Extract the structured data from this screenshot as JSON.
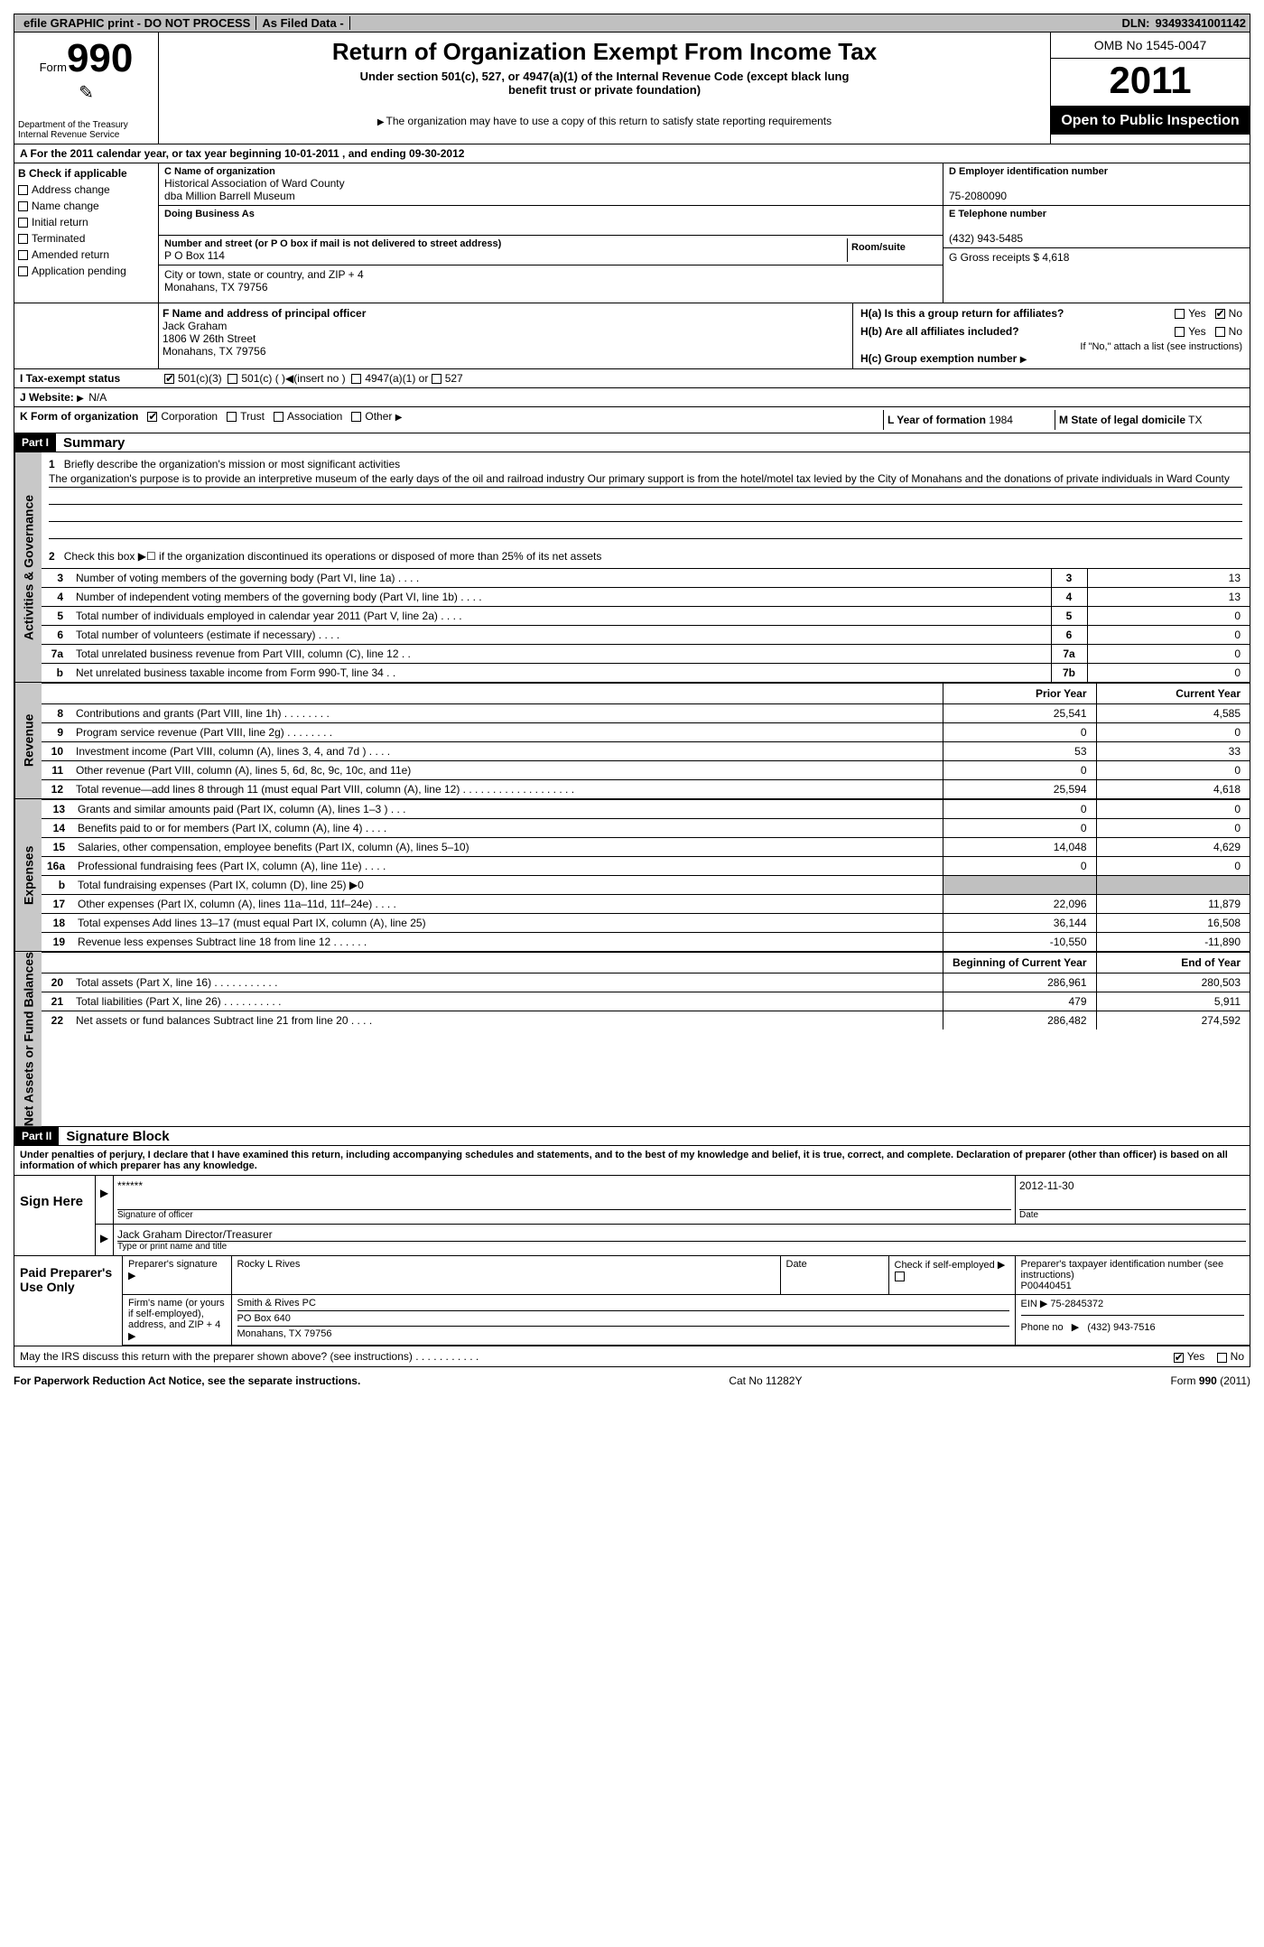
{
  "topbar": {
    "efile": "efile GRAPHIC print - DO NOT PROCESS",
    "asfiled": "As Filed Data -",
    "dln_label": "DLN:",
    "dln": "93493341001142"
  },
  "header": {
    "form_word": "Form",
    "form_no": "990",
    "dept": "Department of the Treasury",
    "irs": "Internal Revenue Service",
    "title": "Return of Organization Exempt From Income Tax",
    "sub": "Under section 501(c), 527, or 4947(a)(1) of the Internal Revenue Code (except black lung",
    "sub2": "benefit trust or private foundation)",
    "note": "The organization may have to use a copy of this return to satisfy state reporting requirements",
    "omb": "OMB No 1545-0047",
    "year": "2011",
    "open": "Open to Public Inspection"
  },
  "line_a": "A  For the 2011 calendar year, or tax year beginning 10-01-2011 , and ending 09-30-2012",
  "section_b": {
    "label": "B  Check if applicable",
    "items": [
      "Address change",
      "Name change",
      "Initial return",
      "Terminated",
      "Amended return",
      "Application pending"
    ]
  },
  "section_c": {
    "name_label": "C Name of organization",
    "name1": "Historical Association of Ward County",
    "name2": "dba Million Barrell Museum",
    "dba_label": "Doing Business As",
    "street_label": "Number and street (or P O  box if mail is not delivered to street address)",
    "room_label": "Room/suite",
    "street": "P O Box 114",
    "city_label": "City or town, state or country, and ZIP + 4",
    "city": "Monahans, TX  79756"
  },
  "section_d": {
    "label": "D Employer identification number",
    "value": "75-2080090"
  },
  "section_e": {
    "label": "E Telephone number",
    "value": "(432) 943-5485"
  },
  "section_g": {
    "label": "G Gross receipts $",
    "value": "4,618"
  },
  "section_f": {
    "label": "F  Name and address of principal officer",
    "name": "Jack Graham",
    "street": "1806 W 26th Street",
    "city": "Monahans, TX  79756"
  },
  "section_h": {
    "ha": "H(a)  Is this a group return for affiliates?",
    "hb": "H(b)  Are all affiliates included?",
    "hb_note": "If \"No,\" attach a list  (see instructions)",
    "hc": "H(c)   Group exemption number",
    "yes": "Yes",
    "no": "No"
  },
  "section_i": {
    "label": "I   Tax-exempt status",
    "opts": [
      "501(c)(3)",
      "501(c) (  )",
      "(insert no )",
      "4947(a)(1) or",
      "527"
    ]
  },
  "section_j": {
    "label": "J   Website:",
    "value": "N/A"
  },
  "section_k": {
    "label": "K Form of organization",
    "opts": [
      "Corporation",
      "Trust",
      "Association",
      "Other"
    ],
    "l_label": "L Year of formation",
    "l_value": "1984",
    "m_label": "M State of legal domicile",
    "m_value": "TX"
  },
  "part1": {
    "header": "Part I",
    "title": "Summary"
  },
  "vtabs": {
    "gov": "Activities & Governance",
    "rev": "Revenue",
    "exp": "Expenses",
    "net": "Net Assets or Fund Balances"
  },
  "mission": {
    "label": "Briefly describe the organization's mission or most significant activities",
    "text": "The organization's purpose is to provide an interpretive museum of the early days of the oil and railroad industry  Our primary support is from the hotel/motel tax levied by the City of Monahans and the donations of private individuals in Ward County"
  },
  "line2": "Check this box ▶☐ if the organization discontinued its operations or disposed of more than 25% of its net assets",
  "gov_lines": [
    {
      "n": "3",
      "label": "Number of voting members of the governing body (Part VI, line 1a)  .    .    .    .",
      "k": "3",
      "v": "13"
    },
    {
      "n": "4",
      "label": "Number of independent voting members of the governing body (Part VI, line 1b)   .    .    .    .",
      "k": "4",
      "v": "13"
    },
    {
      "n": "5",
      "label": "Total number of individuals employed in calendar year 2011 (Part V, line 2a)  .    .    .    .",
      "k": "5",
      "v": "0"
    },
    {
      "n": "6",
      "label": "Total number of volunteers (estimate if necessary)  .    .    .    .",
      "k": "6",
      "v": "0"
    },
    {
      "n": "7a",
      "label": "Total unrelated business revenue from Part VIII, column (C), line 12  .    .",
      "k": "7a",
      "v": "0"
    },
    {
      "n": "b",
      "label": "Net unrelated business taxable income from Form 990-T, line 34  .    .",
      "k": "7b",
      "v": "0"
    }
  ],
  "fin_headers": {
    "prior": "Prior Year",
    "curr": "Current Year",
    "boy": "Beginning of Current Year",
    "eoy": "End of Year"
  },
  "rev_lines": [
    {
      "n": "8",
      "label": "Contributions and grants (Part VIII, line 1h)  .    .    .    .    .    .    .    .",
      "p": "25,541",
      "c": "4,585"
    },
    {
      "n": "9",
      "label": "Program service revenue (Part VIII, line 2g)  .    .    .    .    .    .    .    .",
      "p": "0",
      "c": "0"
    },
    {
      "n": "10",
      "label": "Investment income (Part VIII, column (A), lines 3, 4, and 7d )  .    .    .    .",
      "p": "53",
      "c": "33"
    },
    {
      "n": "11",
      "label": "Other revenue (Part VIII, column (A), lines 5, 6d, 8c, 9c, 10c, and 11e)",
      "p": "0",
      "c": "0"
    },
    {
      "n": "12",
      "label": "Total revenue—add lines 8 through 11 (must equal Part VIII, column (A), line 12)  .    .    .    .    .    .    .    .    .    .    .    .    .    .    .    .    .    .    .",
      "p": "25,594",
      "c": "4,618"
    }
  ],
  "exp_lines": [
    {
      "n": "13",
      "label": "Grants and similar amounts paid (Part IX, column (A), lines 1–3 )  .    .    .",
      "p": "0",
      "c": "0"
    },
    {
      "n": "14",
      "label": "Benefits paid to or for members (Part IX, column (A), line 4)  .    .    .    .",
      "p": "0",
      "c": "0"
    },
    {
      "n": "15",
      "label": "Salaries, other compensation, employee benefits (Part IX, column (A), lines 5–10)",
      "p": "14,048",
      "c": "4,629"
    },
    {
      "n": "16a",
      "label": "Professional fundraising fees (Part IX, column (A), line 11e)  .    .    .    .",
      "p": "0",
      "c": "0"
    },
    {
      "n": "b",
      "label": "Total fundraising expenses (Part IX, column (D), line 25) ▶0",
      "p": "",
      "c": "",
      "gray": true
    },
    {
      "n": "17",
      "label": "Other expenses (Part IX, column (A), lines 11a–11d, 11f–24e)  .    .    .    .",
      "p": "22,096",
      "c": "11,879"
    },
    {
      "n": "18",
      "label": "Total expenses  Add lines 13–17 (must equal Part IX, column (A), line 25)",
      "p": "36,144",
      "c": "16,508"
    },
    {
      "n": "19",
      "label": "Revenue less expenses  Subtract line 18 from line 12 .    .    .    .    .    .",
      "p": "-10,550",
      "c": "-11,890"
    }
  ],
  "net_lines": [
    {
      "n": "20",
      "label": "Total assets (Part X, line 16)  .    .    .    .    .    .    .    .    .    .    .",
      "p": "286,961",
      "c": "280,503"
    },
    {
      "n": "21",
      "label": "Total liabilities (Part X, line 26)  .    .    .    .    .    .    .    .    .    .",
      "p": "479",
      "c": "5,911"
    },
    {
      "n": "22",
      "label": "Net assets or fund balances  Subtract line 21 from line 20  .    .    .    .",
      "p": "286,482",
      "c": "274,592"
    }
  ],
  "part2": {
    "header": "Part II",
    "title": "Signature Block"
  },
  "declaration": "Under penalties of perjury, I declare that I have examined this return, including accompanying schedules and statements, and to the best of my knowledge and belief, it is true, correct, and complete. Declaration of preparer (other than officer) is based on all information of which preparer has any knowledge.",
  "sign": {
    "here": "Sign Here",
    "stars": "******",
    "sig_label": "Signature of officer",
    "date": "2012-11-30",
    "date_label": "Date",
    "name": "Jack Graham  Director/Treasurer",
    "name_label": "Type or print name and title"
  },
  "preparer": {
    "label": "Paid Preparer's Use Only",
    "sig_label": "Preparer's signature",
    "name": "Rocky L Rives",
    "date_label": "Date",
    "self_label": "Check if self-employed",
    "ptin_label": "Preparer's taxpayer identification number (see instructions)",
    "ptin": "P00440451",
    "firm_label": "Firm's name (or yours if self-employed), address, and ZIP + 4",
    "firm": "Smith & Rives PC",
    "firm_addr1": "PO Box 640",
    "firm_addr2": "Monahans, TX  79756",
    "ein_label": "EIN",
    "ein": "75-2845372",
    "phone_label": "Phone no",
    "phone": "(432) 943-7516"
  },
  "discuss": {
    "text": "May the IRS discuss this return with the preparer shown above? (see instructions)   .    .    .    .    .    .    .    .    .    .    .",
    "yes": "Yes",
    "no": "No"
  },
  "footer": {
    "left": "For Paperwork Reduction Act Notice, see the separate instructions.",
    "center": "Cat No  11282Y",
    "right": "Form 990 (2011)"
  }
}
